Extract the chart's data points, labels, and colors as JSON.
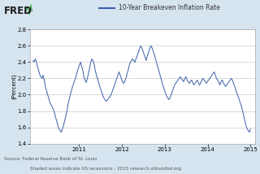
{
  "title": "10-Year Breakeven Inflation Rate",
  "ylabel": "(Percent)",
  "ylim": [
    1.4,
    2.8
  ],
  "yticks": [
    1.4,
    1.6,
    1.8,
    2.0,
    2.2,
    2.4,
    2.6,
    2.8
  ],
  "fig_bg_color": "#d6e4f0",
  "plot_bg_color": "#ffffff",
  "line_color": "#3a5ea8",
  "source_text": "Source: Federal Reserve Bank of St. Louis",
  "shaded_text": "Shaded areas indicate US recessions - 2015 research.stlouisfed.org",
  "x_ticks_labels": [
    "2011",
    "2012",
    "2013",
    "2014",
    "2015"
  ],
  "xlim": [
    2009.85,
    2015.1
  ],
  "x_tick_positions": [
    2011,
    2012,
    2013,
    2014,
    2015
  ],
  "data": [
    2.42,
    2.4,
    2.44,
    2.41,
    2.35,
    2.3,
    2.25,
    2.22,
    2.2,
    2.24,
    2.18,
    2.1,
    2.05,
    2.0,
    1.96,
    1.9,
    1.88,
    1.85,
    1.82,
    1.78,
    1.72,
    1.68,
    1.62,
    1.58,
    1.56,
    1.54,
    1.58,
    1.62,
    1.68,
    1.74,
    1.8,
    1.88,
    1.94,
    2.0,
    2.05,
    2.1,
    2.14,
    2.18,
    2.22,
    2.28,
    2.32,
    2.36,
    2.4,
    2.35,
    2.3,
    2.22,
    2.18,
    2.15,
    2.2,
    2.26,
    2.32,
    2.4,
    2.44,
    2.42,
    2.38,
    2.3,
    2.24,
    2.2,
    2.15,
    2.1,
    2.06,
    2.02,
    1.98,
    1.95,
    1.93,
    1.92,
    1.94,
    1.96,
    1.98,
    2.0,
    2.04,
    2.08,
    2.12,
    2.16,
    2.2,
    2.24,
    2.28,
    2.24,
    2.2,
    2.16,
    2.14,
    2.16,
    2.2,
    2.25,
    2.3,
    2.36,
    2.4,
    2.42,
    2.44,
    2.42,
    2.4,
    2.44,
    2.48,
    2.52,
    2.56,
    2.6,
    2.58,
    2.54,
    2.5,
    2.46,
    2.42,
    2.48,
    2.52,
    2.56,
    2.6,
    2.58,
    2.54,
    2.5,
    2.45,
    2.4,
    2.35,
    2.3,
    2.25,
    2.2,
    2.15,
    2.1,
    2.06,
    2.02,
    1.98,
    1.96,
    1.94,
    1.96,
    2.0,
    2.04,
    2.08,
    2.12,
    2.14,
    2.16,
    2.18,
    2.2,
    2.22,
    2.2,
    2.18,
    2.16,
    2.2,
    2.22,
    2.18,
    2.16,
    2.14,
    2.16,
    2.18,
    2.15,
    2.12,
    2.14,
    2.16,
    2.18,
    2.15,
    2.12,
    2.14,
    2.18,
    2.2,
    2.18,
    2.16,
    2.14,
    2.16,
    2.18,
    2.2,
    2.22,
    2.24,
    2.26,
    2.28,
    2.24,
    2.2,
    2.18,
    2.15,
    2.12,
    2.16,
    2.18,
    2.15,
    2.12,
    2.1,
    2.12,
    2.14,
    2.16,
    2.18,
    2.2,
    2.18,
    2.14,
    2.1,
    2.06,
    2.02,
    1.98,
    1.94,
    1.9,
    1.86,
    1.8,
    1.74,
    1.68,
    1.62,
    1.58,
    1.56,
    1.54,
    1.58
  ]
}
